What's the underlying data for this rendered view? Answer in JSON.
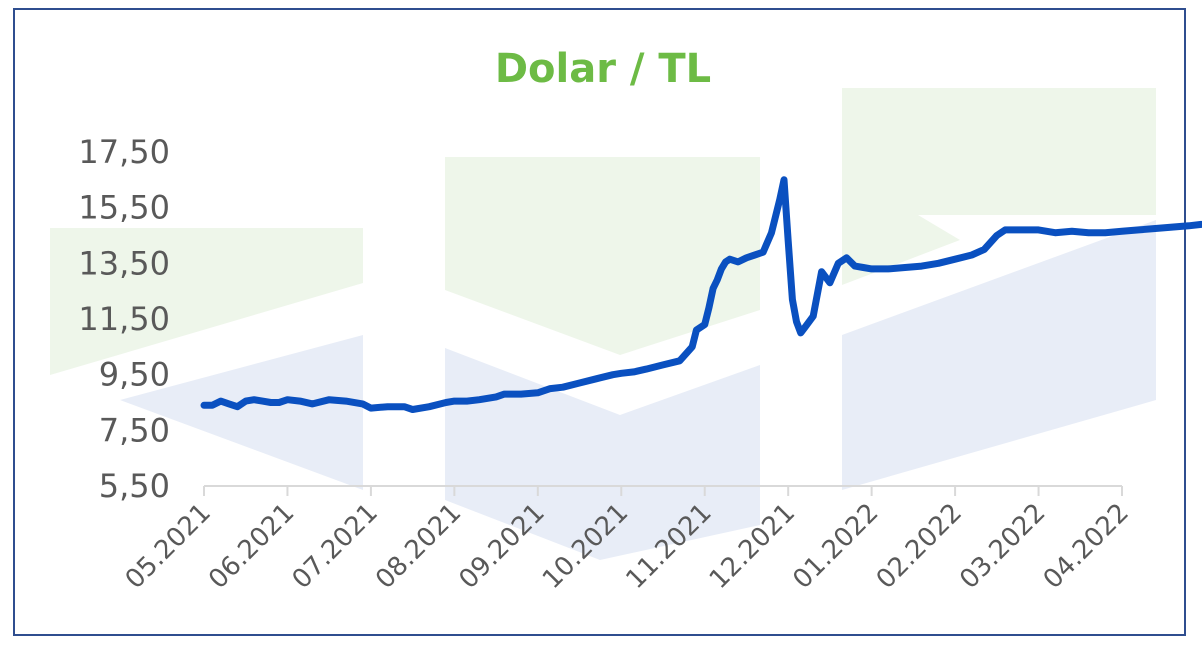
{
  "chart_data": {
    "type": "line",
    "title": "Dolar / TL",
    "xlabel": "",
    "ylabel": "",
    "ylim": [
      5.5,
      17.5
    ],
    "yticks": [
      "5,50",
      "7,50",
      "9,50",
      "11,50",
      "13,50",
      "15,50",
      "17,50"
    ],
    "ytick_values": [
      5.5,
      7.5,
      9.5,
      11.5,
      13.5,
      15.5,
      17.5
    ],
    "xticks": [
      "05.2021",
      "06.2021",
      "07.2021",
      "08.2021",
      "09.2021",
      "10.2021",
      "11.2021",
      "12.2021",
      "01.2022",
      "02.2022",
      "03.2022",
      "04.2022"
    ],
    "grid": false,
    "legend": "none",
    "colors": {
      "line": "#0a50c0",
      "title": "#6dbb45",
      "watermark_green": "#eef6ea",
      "watermark_blue": "#e8edf7",
      "frame": "#2f4e8f"
    },
    "series": [
      {
        "x": [
          0.0,
          0.1,
          0.2,
          0.3,
          0.4,
          0.5,
          0.6,
          0.7,
          0.8,
          0.9,
          1.0,
          1.15,
          1.3,
          1.5,
          1.7,
          1.9,
          2.0,
          2.2,
          2.4,
          2.5,
          2.7,
          2.9,
          3.0,
          3.15,
          3.3,
          3.5,
          3.6,
          3.8,
          4.0,
          4.15,
          4.3,
          4.5,
          4.7,
          4.9,
          5.0,
          5.15,
          5.3,
          5.5,
          5.7,
          5.85,
          5.9,
          6.0,
          6.05,
          6.1,
          6.15,
          6.2,
          6.25,
          6.3,
          6.4,
          6.5,
          6.6,
          6.7,
          6.8,
          6.9,
          6.95,
          7.0,
          7.05,
          7.1,
          7.15,
          7.2,
          7.3,
          7.4,
          7.5,
          7.6,
          7.7,
          7.8,
          7.9,
          8.0,
          8.2,
          8.4,
          8.6,
          8.8,
          9.0,
          9.2,
          9.35,
          9.5,
          9.6,
          9.7,
          9.8,
          10.0,
          10.2,
          10.4,
          10.6,
          10.8,
          11.0,
          11.2,
          11.4,
          11.6,
          11.8,
          11.95
        ],
        "values": [
          8.4,
          8.4,
          8.55,
          8.45,
          8.35,
          8.55,
          8.6,
          8.55,
          8.5,
          8.5,
          8.6,
          8.55,
          8.45,
          8.6,
          8.55,
          8.45,
          8.3,
          8.35,
          8.35,
          8.25,
          8.35,
          8.5,
          8.55,
          8.55,
          8.6,
          8.7,
          8.8,
          8.8,
          8.85,
          9.0,
          9.05,
          9.2,
          9.35,
          9.5,
          9.55,
          9.6,
          9.7,
          9.85,
          10.0,
          10.5,
          11.1,
          11.3,
          11.9,
          12.6,
          12.9,
          13.3,
          13.55,
          13.65,
          13.55,
          13.7,
          13.8,
          13.9,
          14.6,
          15.8,
          16.5,
          14.3,
          12.2,
          11.4,
          11.0,
          11.2,
          11.6,
          13.2,
          12.8,
          13.5,
          13.7,
          13.4,
          13.35,
          13.3,
          13.3,
          13.35,
          13.4,
          13.5,
          13.65,
          13.8,
          14.0,
          14.5,
          14.7,
          14.7,
          14.7,
          14.7,
          14.6,
          14.65,
          14.6,
          14.6,
          14.65,
          14.7,
          14.75,
          14.8,
          14.85,
          14.9
        ]
      }
    ]
  }
}
